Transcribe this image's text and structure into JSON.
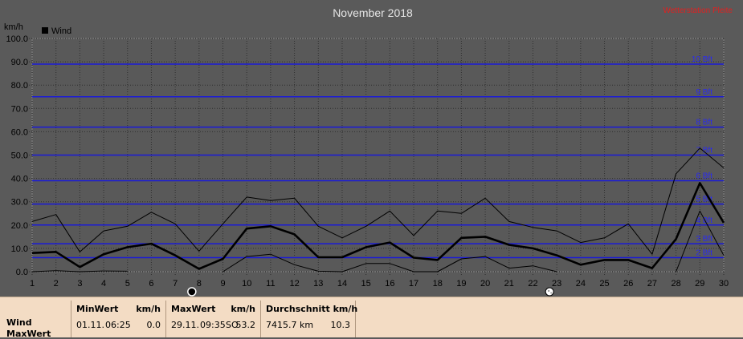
{
  "chart_data": {
    "type": "line",
    "title": "November 2018",
    "unit_label": "km/h",
    "legend": "Wind",
    "note": "Wetterstation Pleite",
    "x": [
      1,
      2,
      3,
      4,
      5,
      6,
      7,
      8,
      9,
      10,
      11,
      12,
      13,
      14,
      15,
      16,
      17,
      18,
      19,
      20,
      21,
      22,
      23,
      24,
      25,
      26,
      27,
      28,
      29,
      30
    ],
    "x_ticks": [
      "1",
      "2",
      "3",
      "4",
      "5",
      "6",
      "7",
      "8",
      "9",
      "10",
      "11",
      "12",
      "13",
      "14",
      "15",
      "16",
      "17",
      "18",
      "19",
      "20",
      "21",
      "22",
      "23",
      "24",
      "25",
      "26",
      "27",
      "28",
      "29",
      "30"
    ],
    "ylim": [
      0,
      100
    ],
    "y_ticks": [
      "0.0",
      "10.0",
      "20.0",
      "30.0",
      "40.0",
      "50.0",
      "60.0",
      "70.0",
      "80.0",
      "90.0",
      "100.0"
    ],
    "y_tick_values": [
      0,
      10,
      20,
      30,
      40,
      50,
      60,
      70,
      80,
      90,
      100
    ],
    "beaufort": [
      {
        "label": "2 Bft",
        "value": 6
      },
      {
        "label": "3 Bft",
        "value": 12
      },
      {
        "label": "4 Bft",
        "value": 20
      },
      {
        "label": "5 Bft",
        "value": 29
      },
      {
        "label": "6 Bft",
        "value": 39
      },
      {
        "label": "7 Bft",
        "value": 50
      },
      {
        "label": "8 Bft",
        "value": 62
      },
      {
        "label": "9 Bft",
        "value": 75
      },
      {
        "label": "10 Bft",
        "value": 89
      }
    ],
    "series": [
      {
        "values": [
          21.5,
          24.5,
          8.5,
          17.5,
          19.5,
          25.5,
          20.5,
          8.8,
          20.5,
          32,
          30.5,
          31.5,
          19.5,
          14.5,
          19.5,
          26,
          15.5,
          26,
          25,
          31.5,
          21.5,
          19,
          17.5,
          12.5,
          14.5,
          20.5,
          7.5,
          42,
          53,
          44.5
        ]
      },
      {
        "values": [
          8,
          8.5,
          2,
          7.5,
          10.5,
          12,
          7,
          1.2,
          5.5,
          18.5,
          19.5,
          16,
          6.2,
          6.2,
          10.5,
          12.5,
          6,
          5,
          14.5,
          15,
          11.5,
          10,
          7,
          3,
          5,
          5,
          1.5,
          14,
          38,
          21
        ]
      },
      {
        "values": [
          0,
          0.4,
          0,
          0.3,
          0.2,
          null,
          null,
          null,
          0,
          6.5,
          7.5,
          3,
          0.2,
          0,
          3.5,
          3.5,
          0,
          0,
          5.5,
          6.5,
          1.5,
          2.5,
          0,
          null,
          null,
          null,
          null,
          0,
          26,
          7
        ]
      }
    ],
    "moon": [
      {
        "day": 8,
        "phase": "new"
      },
      {
        "day": 23,
        "phase": "full"
      }
    ]
  },
  "table": {
    "row_label": "Wind",
    "row_label_2": "MaxWert",
    "min": {
      "header": "MinWert",
      "unit": "km/h",
      "date": "01.11.",
      "time": "06:25",
      "value": "0.0"
    },
    "max": {
      "header": "MaxWert",
      "unit": "km/h",
      "date": "29.11.",
      "time": "09:35",
      "dir": "SO",
      "value": "53.2"
    },
    "avg": {
      "header": "Durchschnitt km/h",
      "distance": "7415.7 km",
      "value": "10.3"
    }
  }
}
